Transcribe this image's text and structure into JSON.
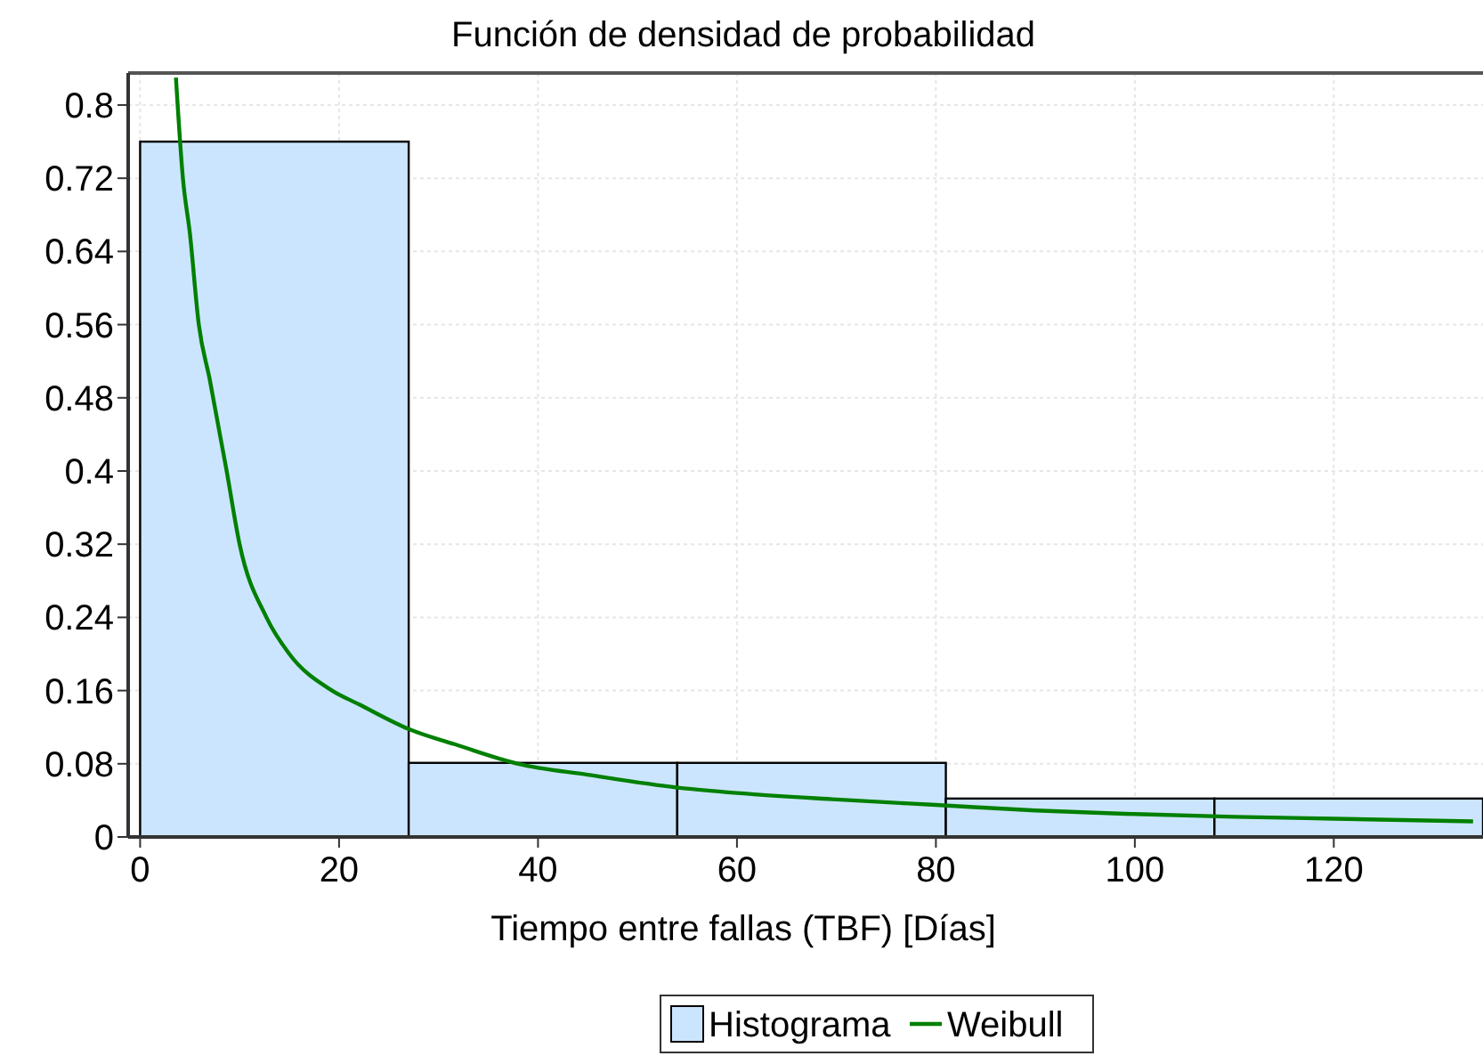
{
  "chart_data": {
    "type": "histogram",
    "title": "Función de densidad de probabilidad",
    "xlabel": "Tiempo entre fallas (TBF) [Días]",
    "bins": [
      0,
      27,
      54,
      81,
      108,
      135
    ],
    "series": [
      {
        "name": "Histograma",
        "color": "#cce5ff",
        "values": [
          0.76,
          0.081,
          0.081,
          0.042,
          0.042
        ]
      },
      {
        "type": "line",
        "name": "Weibull",
        "color": "#008000",
        "x": [
          3.6,
          4.3,
          5,
          5.9,
          7,
          8.7,
          10,
          12.7,
          15,
          19.3,
          22,
          27,
          32,
          38,
          45,
          54,
          60,
          70,
          80,
          90,
          100,
          110,
          120,
          134
        ],
        "values": [
          0.83,
          0.72,
          0.66,
          0.56,
          0.5,
          0.4,
          0.32,
          0.24,
          0.2,
          0.16,
          0.145,
          0.118,
          0.1,
          0.08,
          0.068,
          0.054,
          0.048,
          0.041,
          0.035,
          0.029,
          0.025,
          0.022,
          0.02,
          0.017
        ]
      }
    ],
    "xlim": [
      -1.2,
      135
    ],
    "ylim": [
      0,
      0.835
    ],
    "xticks": [
      0,
      20,
      40,
      60,
      80,
      100,
      120
    ],
    "yticks": [
      0,
      0.08,
      0.16,
      0.24,
      0.32,
      0.4,
      0.48,
      0.56,
      0.64,
      0.72,
      0.8
    ],
    "grid": true,
    "legend": "bottom"
  }
}
